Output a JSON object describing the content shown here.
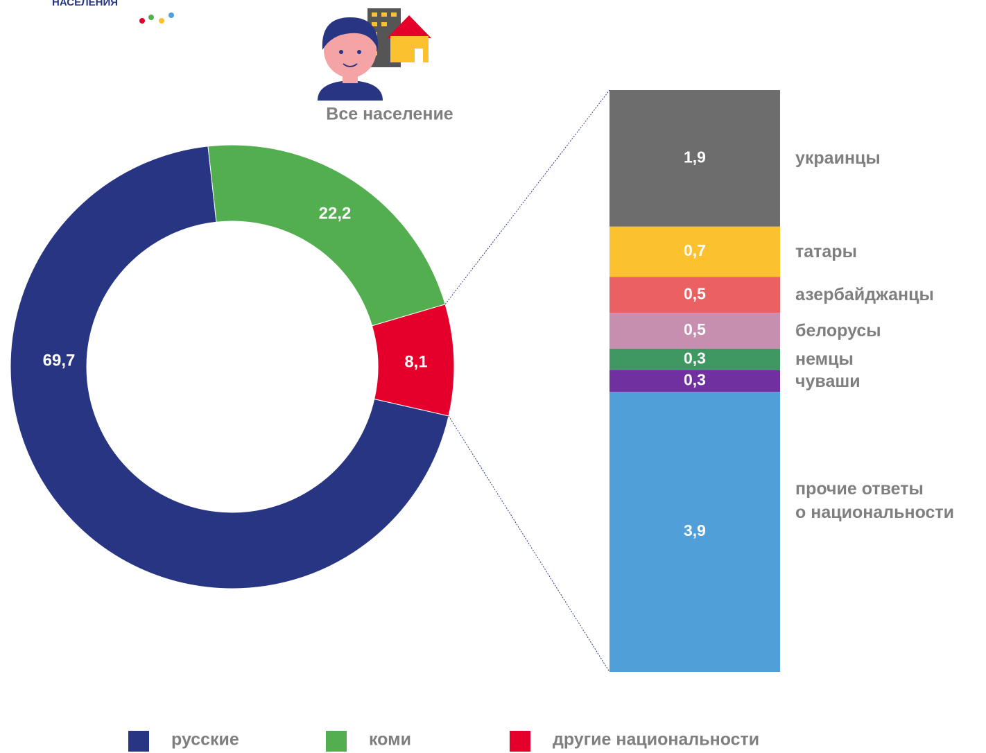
{
  "logo_text": "НАСЕЛЕНИЯ",
  "chart_data": [
    {
      "type": "pie",
      "title": "Все население",
      "categories": [
        "русские",
        "коми",
        "другие национальности"
      ],
      "values": [
        69.7,
        22.2,
        8.1
      ],
      "value_labels": [
        "69,7",
        "22,2",
        "8,1"
      ],
      "colors": [
        "#283583",
        "#52ae4f",
        "#e4002b"
      ]
    },
    {
      "type": "stacked-bar",
      "series": [
        {
          "name": "украинцы",
          "color": "#6d6d6d",
          "values": [
            1.9
          ],
          "value_labels": [
            "1,9"
          ]
        },
        {
          "name": "татары",
          "color": "#fcc12e",
          "values": [
            0.7
          ],
          "value_labels": [
            "0,7"
          ]
        },
        {
          "name": "азербайджанцы",
          "color": "#eb6161",
          "values": [
            0.5
          ],
          "value_labels": [
            "0,5"
          ]
        },
        {
          "name": "белорусы",
          "color": "#c68fb0",
          "values": [
            0.5
          ],
          "value_labels": [
            "0,5"
          ]
        },
        {
          "name": "немцы",
          "color": "#3f9762",
          "values": [
            0.3
          ],
          "value_labels": [
            "0,3"
          ]
        },
        {
          "name": "чуваши",
          "color": "#7030a0",
          "values": [
            0.3
          ],
          "value_labels": [
            "0,3"
          ]
        },
        {
          "name": "прочие ответы\nо национальности",
          "color": "#519fd8",
          "values": [
            3.9
          ],
          "value_labels": [
            "3,9"
          ]
        }
      ]
    }
  ]
}
